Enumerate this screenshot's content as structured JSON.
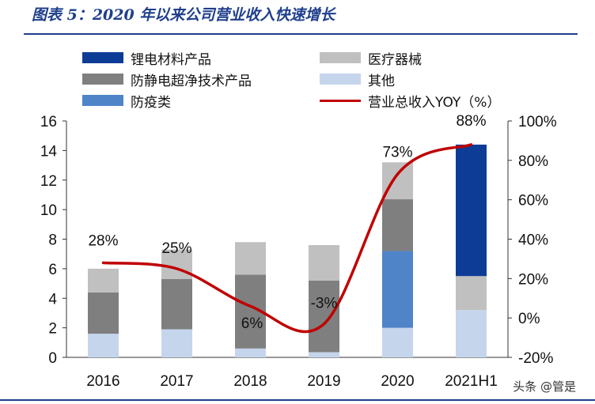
{
  "title": "图表 5：2020 年以来公司营业收入快速增长",
  "watermark": "头条 @管是",
  "chart_data": {
    "type": "bar",
    "stacked": true,
    "categories": [
      "2016",
      "2017",
      "2018",
      "2019",
      "2020",
      "2021H1"
    ],
    "series": [
      {
        "name": "其他",
        "color": "#c5d5ec",
        "values": [
          1.6,
          1.9,
          0.6,
          0.35,
          2.0,
          3.2
        ]
      },
      {
        "name": "防疫类",
        "color": "#4f84c8",
        "values": [
          0,
          0,
          0,
          0,
          5.2,
          0
        ]
      },
      {
        "name": "防静电超净技术产品",
        "color": "#7f7f7f",
        "values": [
          2.8,
          3.4,
          5.0,
          4.85,
          3.5,
          0
        ]
      },
      {
        "name": "医疗器械",
        "color": "#c0c0c0",
        "values": [
          1.6,
          2.0,
          2.2,
          2.4,
          2.5,
          2.3
        ]
      },
      {
        "name": "锂电材料产品",
        "color": "#0d3c96",
        "values": [
          0,
          0,
          0,
          0,
          0,
          8.9
        ]
      }
    ],
    "line": {
      "name": "营业总收入YOY（%）",
      "color": "#c00000",
      "values": [
        28,
        25,
        6,
        -3,
        73,
        88
      ],
      "labels": [
        "28%",
        "25%",
        "6%",
        "-3%",
        "73%",
        "88%"
      ]
    },
    "ylim": [
      0,
      16
    ],
    "yticks": [
      "0",
      "2",
      "4",
      "6",
      "8",
      "10",
      "12",
      "14",
      "16"
    ],
    "y2lim": [
      -20,
      100
    ],
    "y2ticks": [
      "-20%",
      "0%",
      "20%",
      "40%",
      "60%",
      "80%",
      "100%"
    ],
    "legend_order": [
      "锂电材料产品",
      "医疗器械",
      "防静电超净技术产品",
      "其他",
      "防疫类",
      "营业总收入YOY（%）"
    ]
  }
}
